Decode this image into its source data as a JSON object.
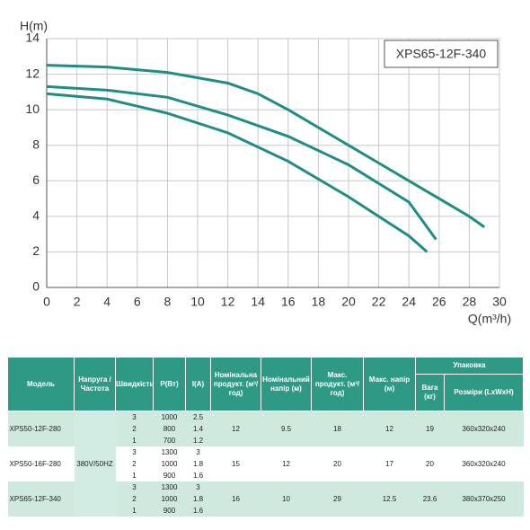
{
  "chart_data": {
    "type": "line",
    "y_label": "H(m)",
    "x_label": "Q(m³/h)",
    "annotation": "XPS65-12F-340",
    "xlim": [
      0,
      30
    ],
    "xticks": [
      0,
      2,
      4,
      6,
      8,
      10,
      12,
      14,
      16,
      18,
      20,
      22,
      24,
      26,
      28,
      30
    ],
    "ylim": [
      0,
      14
    ],
    "yticks": [
      0,
      2,
      4,
      6,
      8,
      10,
      12,
      14
    ],
    "grid": true,
    "series": [
      {
        "color": "#1f8c86",
        "x": [
          0,
          4,
          8,
          12,
          14,
          16,
          18,
          20,
          22,
          24,
          26,
          28,
          29
        ],
        "values": [
          12.5,
          12.4,
          12.1,
          11.5,
          10.9,
          10,
          9,
          8,
          7,
          6,
          5,
          4,
          3.4
        ]
      },
      {
        "color": "#1f8c86",
        "x": [
          0,
          4,
          8,
          12,
          16,
          20,
          24,
          25.8
        ],
        "values": [
          11.3,
          11.1,
          10.7,
          9.7,
          8.5,
          6.9,
          4.8,
          2.7
        ]
      },
      {
        "color": "#1f8c86",
        "x": [
          0,
          4,
          8,
          12,
          16,
          20,
          24,
          25.2
        ],
        "values": [
          10.9,
          10.6,
          9.8,
          8.7,
          7.1,
          5.1,
          2.9,
          2.0
        ]
      }
    ]
  },
  "table": {
    "header": {
      "model": "Модель",
      "voltage": "Напруга /Частота",
      "speed": "Швидкість",
      "power": "P(Вт)",
      "current": "I(A)",
      "nominal_flow": "Номінальна продукт. (м³/год)",
      "nominal_head": "Номінальний напір (м)",
      "max_flow": "Макс. продукт. (м³/год)",
      "max_head": "Макс. напір (м)",
      "packing": "Упаковка",
      "weight": "Вага (кг)",
      "dims": "Розміри (LxWxH)"
    },
    "voltage": "380V/50HZ",
    "rows": [
      {
        "model": "XPS50-12F-280",
        "speed": [
          "3",
          "2",
          "1"
        ],
        "power": [
          "1000",
          "800",
          "700"
        ],
        "current": [
          "2.5",
          "1.4",
          "1.2"
        ],
        "nominal_flow": "12",
        "nominal_head": "9.5",
        "max_flow": "18",
        "max_head": "12",
        "weight": "19",
        "dims": "360x320x240"
      },
      {
        "model": "XPS50-16F-280",
        "speed": [
          "3",
          "2",
          "1"
        ],
        "power": [
          "1300",
          "1000",
          "900"
        ],
        "current": [
          "3",
          "1.8",
          "1.6"
        ],
        "nominal_flow": "15",
        "nominal_head": "12",
        "max_flow": "20",
        "max_head": "17",
        "weight": "20",
        "dims": "360x320x240"
      },
      {
        "model": "XPS65-12F-340",
        "speed": [
          "3",
          "2",
          "1"
        ],
        "power": [
          "1300",
          "1000",
          "900"
        ],
        "current": [
          "3",
          "1.8",
          "1.6"
        ],
        "nominal_flow": "16",
        "nominal_head": "10",
        "max_flow": "29",
        "max_head": "12.5",
        "weight": "23.6",
        "dims": "380x370x250"
      }
    ]
  }
}
